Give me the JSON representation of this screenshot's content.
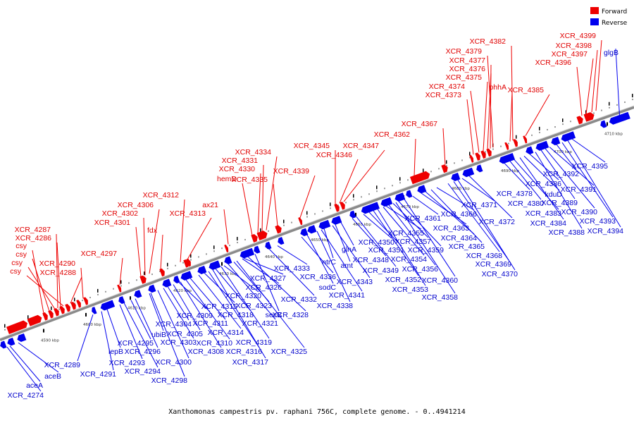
{
  "caption": "Xanthomonas campestris pv. raphani 756C, complete genome. - 0..4941214",
  "legend": [
    {
      "label": "Forward",
      "color": "#ee0000"
    },
    {
      "label": "Reverse",
      "color": "#0000ee"
    }
  ],
  "ticks": [
    "4590 kbp",
    "4600 kbp",
    "4610 kbp",
    "4620 kbp",
    "4630 kbp",
    "4640 kbp",
    "4650 kbp",
    "4660 kbp",
    "4670 kbp",
    "4680 kbp",
    "4690 kbp",
    "4700 kbp",
    "4710 kbp"
  ],
  "forward_labels": [
    "XCR_4287",
    "XCR_4286",
    "csy",
    "csy",
    "csy",
    "csy",
    "XCR_4288",
    "XCR_4290",
    "XCR_4297",
    "XCR_4301",
    "XCR_4302",
    "XCR_4306",
    "fdx",
    "XCR_4312",
    "XCR_4313",
    "ax21",
    "hemD",
    "XCR_4330",
    "XCR_4331",
    "XCR_4334",
    "XCR_4335",
    "XCR_4339",
    "XCR_4345",
    "XCR_4346",
    "XCR_4347",
    "XCR_4362",
    "XCR_4367",
    "XCR_4373",
    "XCR_4374",
    "XCR_4375",
    "XCR_4376",
    "XCR_4377",
    "XCR_4379",
    "XCR_4382",
    "phhA",
    "XCR_4385",
    "XCR_4396",
    "XCR_4397",
    "XCR_4398",
    "XCR_4399"
  ],
  "reverse_labels": [
    "XCR_4274",
    "aceA",
    "aceB",
    "XCR_4289",
    "XCR_4291",
    "lepB",
    "XCR_4293",
    "XCR_4294",
    "XCR_4295",
    "XCR_4296",
    "XCR_4298",
    "ubiB",
    "XCR_4300",
    "XCR_4303",
    "XCR_4304",
    "XCR_4305",
    "XCR_4308",
    "XCR_4309",
    "XCR_4310",
    "XCR_4311",
    "XCR_4314",
    "XCR_4315",
    "XCR_4316",
    "XCR_4317",
    "XCR_4318",
    "XCR_4319",
    "XCR_4320",
    "XCR_4321",
    "XCR_4323",
    "XCR_4325",
    "XCR_4326",
    "XCR_4327",
    "XCR_4328",
    "secB",
    "XCR_4332",
    "XCR_4333",
    "XCR_4336",
    "sodC",
    "XCR_4338",
    "XCR_4341",
    "XCR_4343",
    "ntrC",
    "amt",
    "glnA",
    "XCR_4348",
    "XCR_4349",
    "XCR_4350",
    "XCR_4351",
    "XCR_4352",
    "XCR_4353",
    "XCR_4354",
    "XCR_4355",
    "XCR_4356",
    "XCR_4357",
    "XCR_4358",
    "XCR_4359",
    "XCR_4360",
    "XCR_4361",
    "XCR_4363",
    "XCR_4364",
    "XCR_4365",
    "XCR_4366",
    "XCR_4368",
    "XCR_4369",
    "XCR_4370",
    "XCR_4371",
    "XCR_4372",
    "XCR_4378",
    "XCR_4380",
    "XCR_4383",
    "XCR_4384",
    "kduD",
    "XCR_4386",
    "XCR_4388",
    "XCR_4389",
    "XCR_4390",
    "XCR_4391",
    "XCR_4392",
    "XCR_4393",
    "XCR_4394",
    "XCR_4395",
    "glgB"
  ]
}
